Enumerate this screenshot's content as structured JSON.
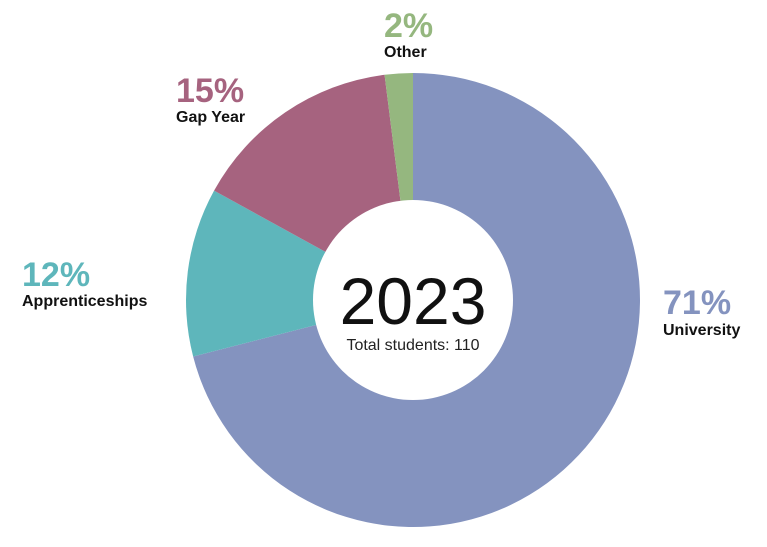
{
  "chart_data": {
    "type": "pie",
    "variant": "donut",
    "center_title": "2023",
    "center_subtitle": "Total students: 110",
    "slices": [
      {
        "label": "University",
        "value": 71,
        "display": "71%",
        "color": "#8493bf"
      },
      {
        "label": "Apprenticeships",
        "value": 12,
        "display": "12%",
        "color": "#5eb6bb"
      },
      {
        "label": "Gap Year",
        "value": 15,
        "display": "15%",
        "color": "#a6637f"
      },
      {
        "label": "Other",
        "value": 2,
        "display": "2%",
        "color": "#95b77f"
      }
    ],
    "legend": "none"
  }
}
